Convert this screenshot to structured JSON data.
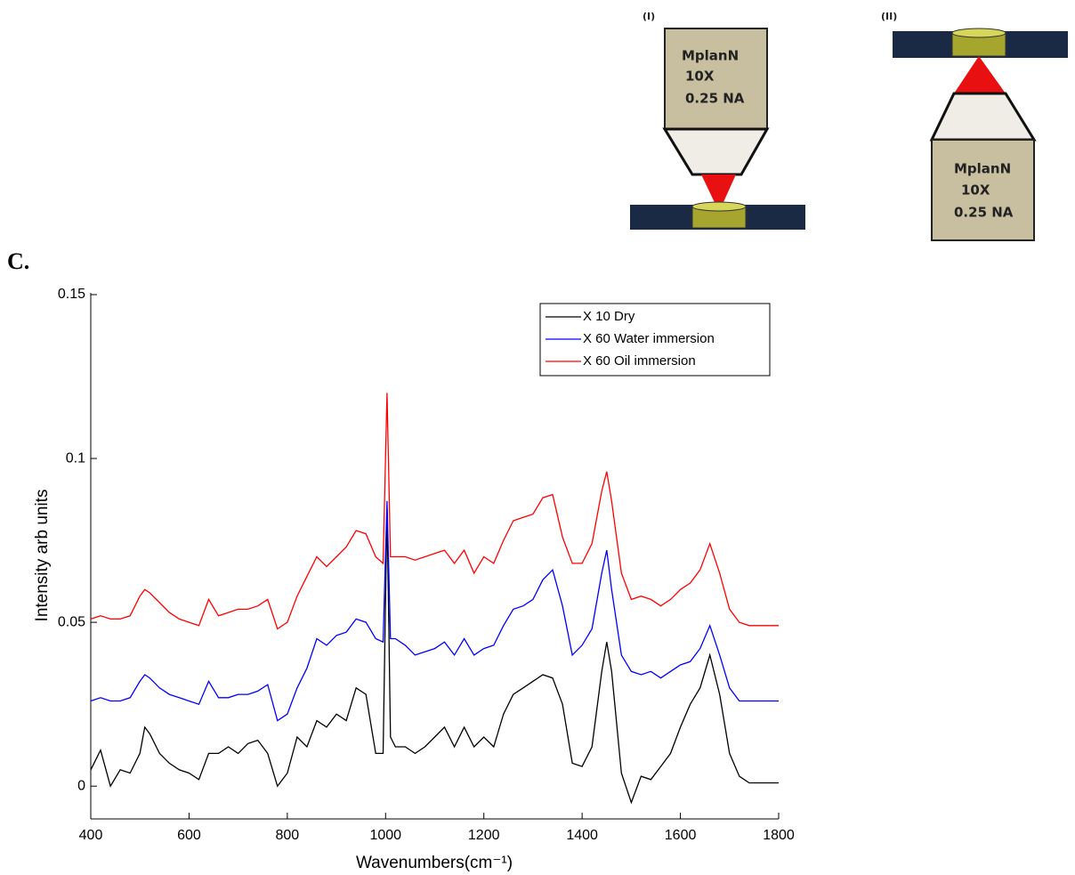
{
  "figure": {
    "panel_label": "C.",
    "diagrams": [
      {
        "label": "(I)",
        "objective": [
          "MplanN",
          "10X",
          "0.25 NA"
        ]
      },
      {
        "label": "(II)",
        "objective": [
          "MplanN",
          "10X",
          "0.25 NA"
        ]
      }
    ]
  },
  "chart_data": {
    "type": "line",
    "ylabel": "Intensity arb units",
    "xlabel": "Wavenumbers(cm⁻¹)",
    "xlim": [
      400,
      1800
    ],
    "xticks": [
      400,
      600,
      800,
      1000,
      1200,
      1400,
      1600,
      1800
    ],
    "ylim": [
      -0.01,
      0.15
    ],
    "yticks": [
      0,
      0.05,
      0.1,
      0.15
    ],
    "legend": "top-right",
    "x": [
      400,
      420,
      440,
      460,
      480,
      500,
      510,
      520,
      540,
      560,
      580,
      600,
      620,
      640,
      660,
      680,
      700,
      720,
      740,
      760,
      780,
      800,
      820,
      840,
      860,
      880,
      900,
      920,
      940,
      960,
      980,
      995,
      1003,
      1010,
      1020,
      1040,
      1060,
      1080,
      1100,
      1120,
      1140,
      1160,
      1180,
      1200,
      1220,
      1240,
      1260,
      1280,
      1300,
      1320,
      1340,
      1360,
      1380,
      1400,
      1420,
      1440,
      1450,
      1460,
      1480,
      1500,
      1520,
      1540,
      1560,
      1580,
      1600,
      1620,
      1640,
      1660,
      1680,
      1700,
      1720,
      1740,
      1760,
      1780,
      1800
    ],
    "series": [
      {
        "name": "X 10 Dry",
        "color": "#000000",
        "values": [
          0.005,
          0.011,
          0.0,
          0.005,
          0.004,
          0.01,
          0.018,
          0.016,
          0.01,
          0.007,
          0.005,
          0.004,
          0.002,
          0.01,
          0.01,
          0.012,
          0.01,
          0.013,
          0.014,
          0.01,
          0.0,
          0.004,
          0.015,
          0.012,
          0.02,
          0.018,
          0.022,
          0.02,
          0.03,
          0.028,
          0.01,
          0.01,
          0.085,
          0.015,
          0.012,
          0.012,
          0.01,
          0.012,
          0.015,
          0.018,
          0.012,
          0.018,
          0.012,
          0.015,
          0.012,
          0.022,
          0.028,
          0.03,
          0.032,
          0.034,
          0.033,
          0.025,
          0.007,
          0.006,
          0.012,
          0.035,
          0.044,
          0.035,
          0.004,
          -0.005,
          0.003,
          0.002,
          0.006,
          0.01,
          0.018,
          0.025,
          0.03,
          0.04,
          0.028,
          0.01,
          0.003,
          0.001,
          0.001,
          0.001,
          0.001
        ]
      },
      {
        "name": "X 60 Water immersion",
        "color": "#0000ff",
        "values": [
          0.026,
          0.027,
          0.026,
          0.026,
          0.027,
          0.032,
          0.034,
          0.033,
          0.03,
          0.028,
          0.027,
          0.026,
          0.025,
          0.032,
          0.027,
          0.027,
          0.028,
          0.028,
          0.029,
          0.031,
          0.02,
          0.022,
          0.03,
          0.036,
          0.045,
          0.043,
          0.046,
          0.047,
          0.051,
          0.05,
          0.045,
          0.044,
          0.087,
          0.045,
          0.045,
          0.043,
          0.04,
          0.041,
          0.042,
          0.044,
          0.04,
          0.045,
          0.04,
          0.042,
          0.043,
          0.049,
          0.054,
          0.055,
          0.057,
          0.063,
          0.066,
          0.055,
          0.04,
          0.043,
          0.048,
          0.065,
          0.072,
          0.06,
          0.04,
          0.035,
          0.034,
          0.035,
          0.033,
          0.035,
          0.037,
          0.038,
          0.042,
          0.049,
          0.04,
          0.03,
          0.026,
          0.026,
          0.026,
          0.026,
          0.026
        ]
      },
      {
        "name": "X 60 Oil immersion",
        "color": "#ff0000",
        "values": [
          0.051,
          0.052,
          0.051,
          0.051,
          0.052,
          0.058,
          0.06,
          0.059,
          0.056,
          0.053,
          0.051,
          0.05,
          0.049,
          0.057,
          0.052,
          0.053,
          0.054,
          0.054,
          0.055,
          0.057,
          0.048,
          0.05,
          0.058,
          0.064,
          0.07,
          0.067,
          0.07,
          0.073,
          0.078,
          0.077,
          0.07,
          0.068,
          0.12,
          0.07,
          0.07,
          0.07,
          0.069,
          0.07,
          0.071,
          0.072,
          0.068,
          0.072,
          0.065,
          0.07,
          0.068,
          0.075,
          0.081,
          0.082,
          0.083,
          0.088,
          0.089,
          0.076,
          0.068,
          0.068,
          0.074,
          0.09,
          0.096,
          0.087,
          0.065,
          0.057,
          0.058,
          0.057,
          0.055,
          0.057,
          0.06,
          0.062,
          0.066,
          0.074,
          0.065,
          0.054,
          0.05,
          0.049,
          0.049,
          0.049,
          0.049
        ]
      }
    ]
  }
}
